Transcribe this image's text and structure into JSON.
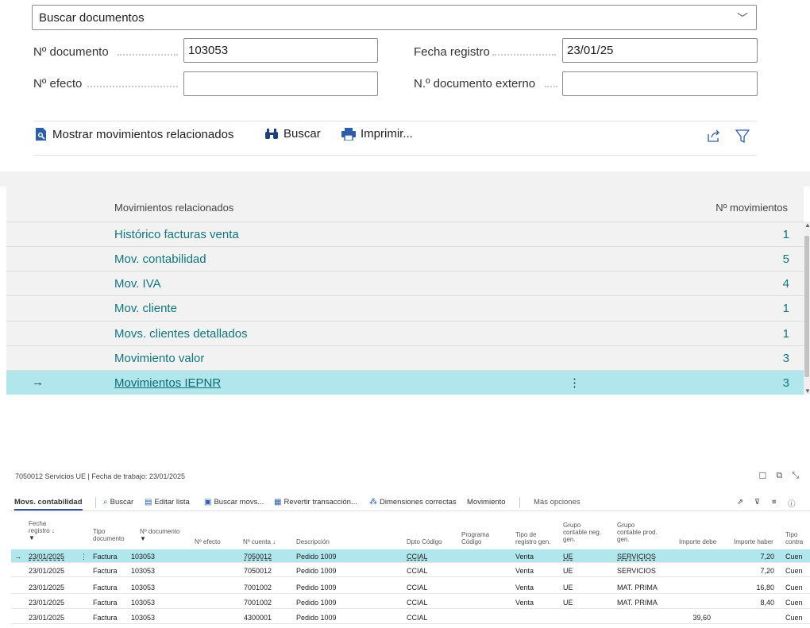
{
  "search_documents": {
    "label": "Buscar documentos"
  },
  "fields": {
    "document_no": {
      "label": "Nº documento",
      "value": "103053"
    },
    "posting_date": {
      "label": "Fecha registro",
      "value": "23/01/25"
    },
    "effect_no": {
      "label": "Nº efecto",
      "value": ""
    },
    "external_doc_no": {
      "label": "N.º documento externo",
      "value": ""
    }
  },
  "actions": {
    "show_related": "Mostrar movimientos relacionados",
    "search": "Buscar",
    "print": "Imprimir..."
  },
  "related": {
    "col_name": "Movimientos relacionados",
    "col_count": "Nº movimientos",
    "rows": [
      {
        "label": "Histórico facturas venta",
        "count": "1"
      },
      {
        "label": "Mov. contabilidad",
        "count": "5"
      },
      {
        "label": "Mov. IVA",
        "count": "4"
      },
      {
        "label": "Mov. cliente",
        "count": "1"
      },
      {
        "label": "Movs. clientes detallados",
        "count": "1"
      },
      {
        "label": "Movimiento valor",
        "count": "3"
      },
      {
        "label": "Movimientos IEPNR",
        "count": "3"
      }
    ],
    "selected_index": 6
  },
  "mini": {
    "title": "7050012 Servicios UE | Fecha de trabajo: 23/01/2025",
    "toolbar": {
      "tab": "Movs. contabilidad",
      "search": "Buscar",
      "edit_list": "Editar lista",
      "search_movs": "Buscar movs...",
      "revert": "Revertir transacción...",
      "dimensions": "Dimensiones correctas",
      "movement": "Movimiento",
      "more": "Más opciones"
    },
    "headers": {
      "date": [
        "Fecha",
        "registro ↓"
      ],
      "doc_type": [
        "Tipo",
        "documento"
      ],
      "doc_no": [
        "Nº documento"
      ],
      "effect": [
        "Nº efecto"
      ],
      "account": [
        "Nº cuenta ↓"
      ],
      "desc": [
        "Descripción"
      ],
      "dpto": [
        "Dpto Código"
      ],
      "program": [
        "Programa",
        "Código"
      ],
      "reg_type": [
        "Tipo de",
        "registro gen."
      ],
      "bus_group": [
        "Grupo",
        "contable neg.",
        "gen."
      ],
      "prod_group": [
        "Grupo",
        "contable prod.",
        "gen."
      ],
      "debit": [
        "Importe debe"
      ],
      "credit": [
        "Importe haber"
      ],
      "contra": [
        "Tipo",
        "contra"
      ]
    },
    "rows": [
      {
        "date": "23/01/2025",
        "type": "Factura",
        "doc": "103053",
        "effect": "",
        "account": "7050012",
        "desc": "Pedido 1009",
        "dpto": "CCIAL",
        "program": "",
        "reg": "Venta",
        "bus": "UE",
        "prod": "SERVICIOS",
        "debit": "",
        "credit": "7,20",
        "contra": "Cuen"
      },
      {
        "date": "23/01/2025",
        "type": "Factura",
        "doc": "103053",
        "effect": "",
        "account": "7050012",
        "desc": "Pedido 1009",
        "dpto": "CCIAL",
        "program": "",
        "reg": "Venta",
        "bus": "UE",
        "prod": "SERVICIOS",
        "debit": "",
        "credit": "7,20",
        "contra": "Cuen"
      },
      {
        "date": "23/01/2025",
        "type": "Factura",
        "doc": "103053",
        "effect": "",
        "account": "7001002",
        "desc": "Pedido 1009",
        "dpto": "CCIAL",
        "program": "",
        "reg": "Venta",
        "bus": "UE",
        "prod": "MAT. PRIMA",
        "debit": "",
        "credit": "16,80",
        "contra": "Cuen"
      },
      {
        "date": "23/01/2025",
        "type": "Factura",
        "doc": "103053",
        "effect": "",
        "account": "7001002",
        "desc": "Pedido 1009",
        "dpto": "CCIAL",
        "program": "",
        "reg": "Venta",
        "bus": "UE",
        "prod": "MAT. PRIMA",
        "debit": "",
        "credit": "8,40",
        "contra": "Cuen"
      },
      {
        "date": "23/01/2025",
        "type": "Factura",
        "doc": "103053",
        "effect": "",
        "account": "4300001",
        "desc": "Pedido 1009",
        "dpto": "CCIAL",
        "program": "",
        "reg": "",
        "bus": "",
        "prod": "",
        "debit": "39,60",
        "credit": "",
        "contra": "Cuen"
      }
    ]
  },
  "colors": {
    "accent": "#127680",
    "selected": "#b1e6ec",
    "icon_blue": "#2d5ea8"
  }
}
